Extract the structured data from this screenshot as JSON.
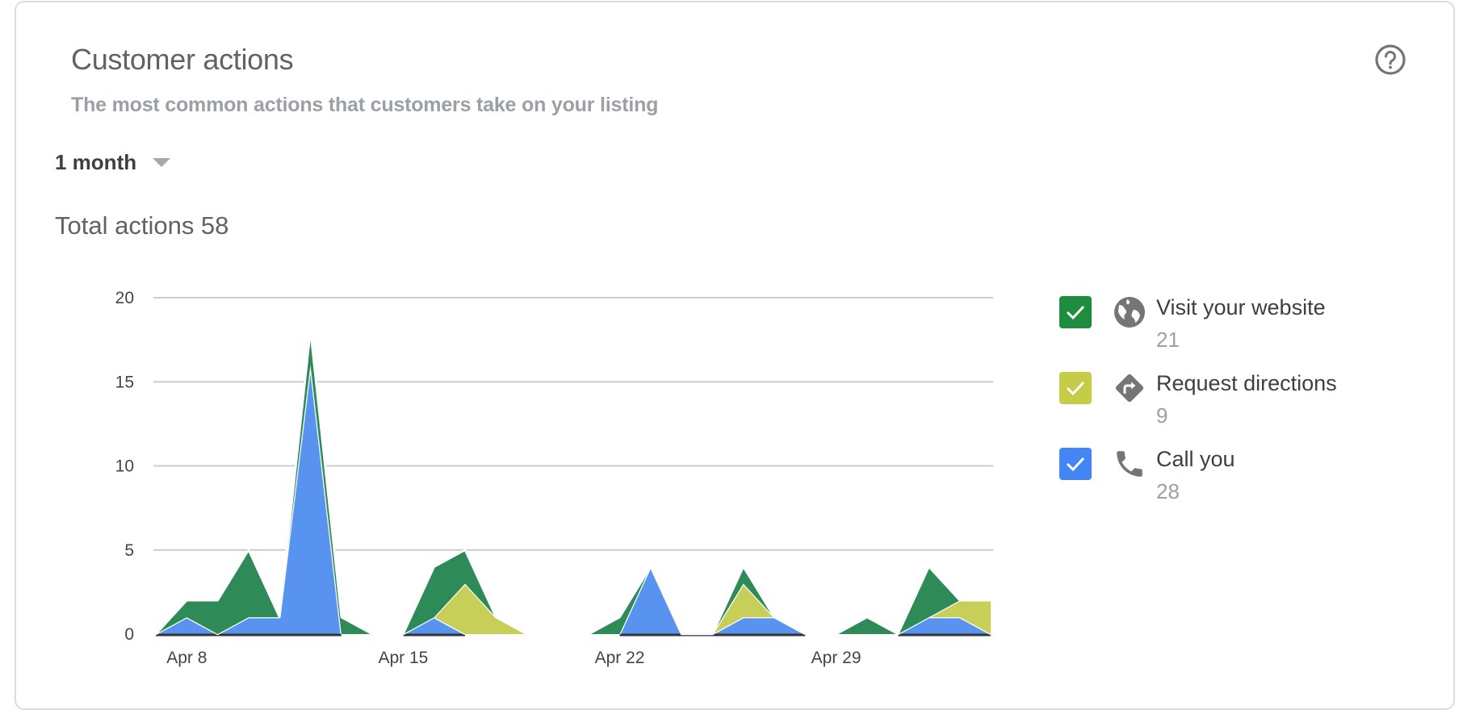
{
  "card": {
    "title": "Customer actions",
    "subtitle": "The most common actions that customers take on your listing",
    "help_icon": "help-circle-icon",
    "period": {
      "selected": "1 month",
      "icon": "dropdown-caret-icon"
    },
    "total_label": "Total actions 58"
  },
  "legend": {
    "items": [
      {
        "label": "Visit your website",
        "count": "21",
        "color": "#1e8e3e",
        "icon": "globe-icon",
        "checked": true
      },
      {
        "label": "Request directions",
        "count": "9",
        "color": "#c5cc45",
        "icon": "directions-icon",
        "checked": true
      },
      {
        "label": "Call you",
        "count": "28",
        "color": "#4285f4",
        "icon": "phone-icon",
        "checked": true
      }
    ]
  },
  "chart_data": {
    "type": "area",
    "stacked": true,
    "title": "Total actions 58",
    "xlabel": "",
    "ylabel": "",
    "ylim": [
      0,
      20
    ],
    "yticks": [
      0,
      5,
      10,
      15,
      20
    ],
    "grid": true,
    "legend_position": "right",
    "x": [
      "Apr 7",
      "Apr 8",
      "Apr 9",
      "Apr 10",
      "Apr 11",
      "Apr 12",
      "Apr 13",
      "Apr 14",
      "Apr 15",
      "Apr 16",
      "Apr 17",
      "Apr 18",
      "Apr 19",
      "Apr 20",
      "Apr 21",
      "Apr 22",
      "Apr 23",
      "Apr 24",
      "Apr 25",
      "Apr 26",
      "Apr 27",
      "Apr 28",
      "Apr 29",
      "Apr 30",
      "May 1",
      "May 2",
      "May 3",
      "May 4"
    ],
    "xtick_labels": [
      {
        "label": "Apr 8",
        "index": 1
      },
      {
        "label": "Apr 15",
        "index": 8
      },
      {
        "label": "Apr 22",
        "index": 15
      },
      {
        "label": "Apr 29",
        "index": 22
      }
    ],
    "series": [
      {
        "name": "Call you",
        "color": "#5993f0",
        "total": 28,
        "values": [
          0,
          1,
          0,
          1,
          1,
          16,
          0,
          null,
          0,
          1,
          0,
          null,
          null,
          null,
          null,
          0,
          4,
          0,
          0,
          1,
          1,
          0,
          null,
          null,
          0,
          1,
          1,
          0
        ]
      },
      {
        "name": "Request directions",
        "color": "#c8cf58",
        "total": 9,
        "values": [
          null,
          null,
          null,
          null,
          null,
          null,
          null,
          null,
          null,
          0,
          3,
          1,
          0,
          null,
          null,
          null,
          null,
          null,
          0,
          2,
          0,
          null,
          null,
          null,
          null,
          0,
          1,
          2
        ]
      },
      {
        "name": "Visit your website",
        "color": "#2e8b57",
        "total": 21,
        "values": [
          0,
          1,
          2,
          4,
          0,
          2,
          1,
          0,
          0,
          3,
          2,
          0,
          null,
          null,
          0,
          1,
          0,
          null,
          0,
          1,
          0,
          null,
          0,
          1,
          0,
          3,
          0,
          0
        ]
      }
    ]
  }
}
